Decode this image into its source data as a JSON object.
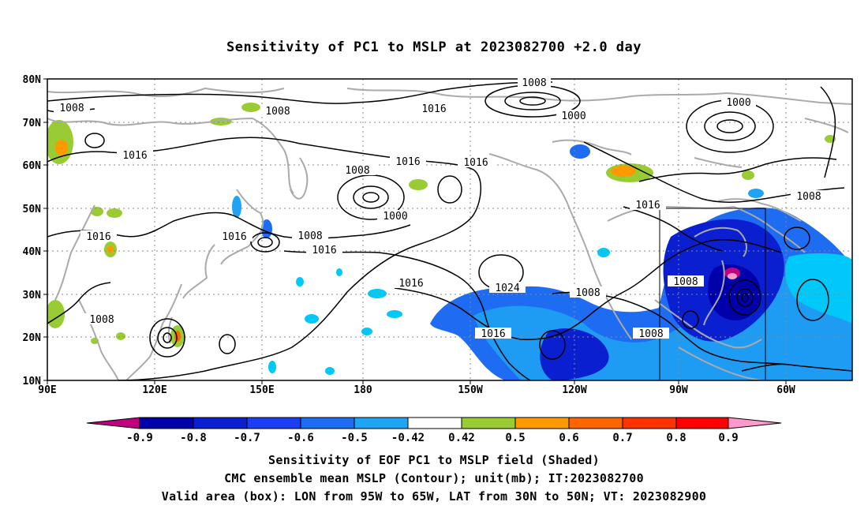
{
  "title": "Sensitivity of PC1 to MSLP at 2023082700 +2.0 day",
  "lat_labels": [
    "80N",
    "70N",
    "60N",
    "50N",
    "40N",
    "30N",
    "20N",
    "10N"
  ],
  "lon_labels": [
    "90E",
    "120E",
    "150E",
    "180",
    "150W",
    "120W",
    "90W",
    "60W"
  ],
  "contour_labels": [
    "1008",
    "1008",
    "1008",
    "1000",
    "1000",
    "1016",
    "1016",
    "1016",
    "1008",
    "1000",
    "1016",
    "1016",
    "1008",
    "1016",
    "1024",
    "1016",
    "1008",
    "1016",
    "1008",
    "1008",
    "1016",
    "1008",
    "1016",
    "1008"
  ],
  "colorbar": {
    "labels": [
      "-0.9",
      "-0.8",
      "-0.7",
      "-0.6",
      "-0.5",
      "-0.42",
      "0.42",
      "0.5",
      "0.6",
      "0.7",
      "0.8",
      "0.9"
    ],
    "colors": [
      "#c0007f",
      "#0000aa",
      "#0a1fd0",
      "#1b3ff0",
      "#1e6cf2",
      "#1fa4f5",
      "#00c8f8",
      "#ffffff",
      "#99cc33",
      "#ff9900",
      "#ff6600",
      "#ff3300",
      "#ff0000",
      "#ff99cc"
    ]
  },
  "captions": [
    "Sensitivity of EOF PC1 to MSLP field (Shaded)",
    "CMC ensemble mean MSLP (Contour); unit(mb); IT:2023082700",
    "Valid area (box): LON from 95W to 65W, LAT from 30N to 50N; VT: 2023082900"
  ]
}
